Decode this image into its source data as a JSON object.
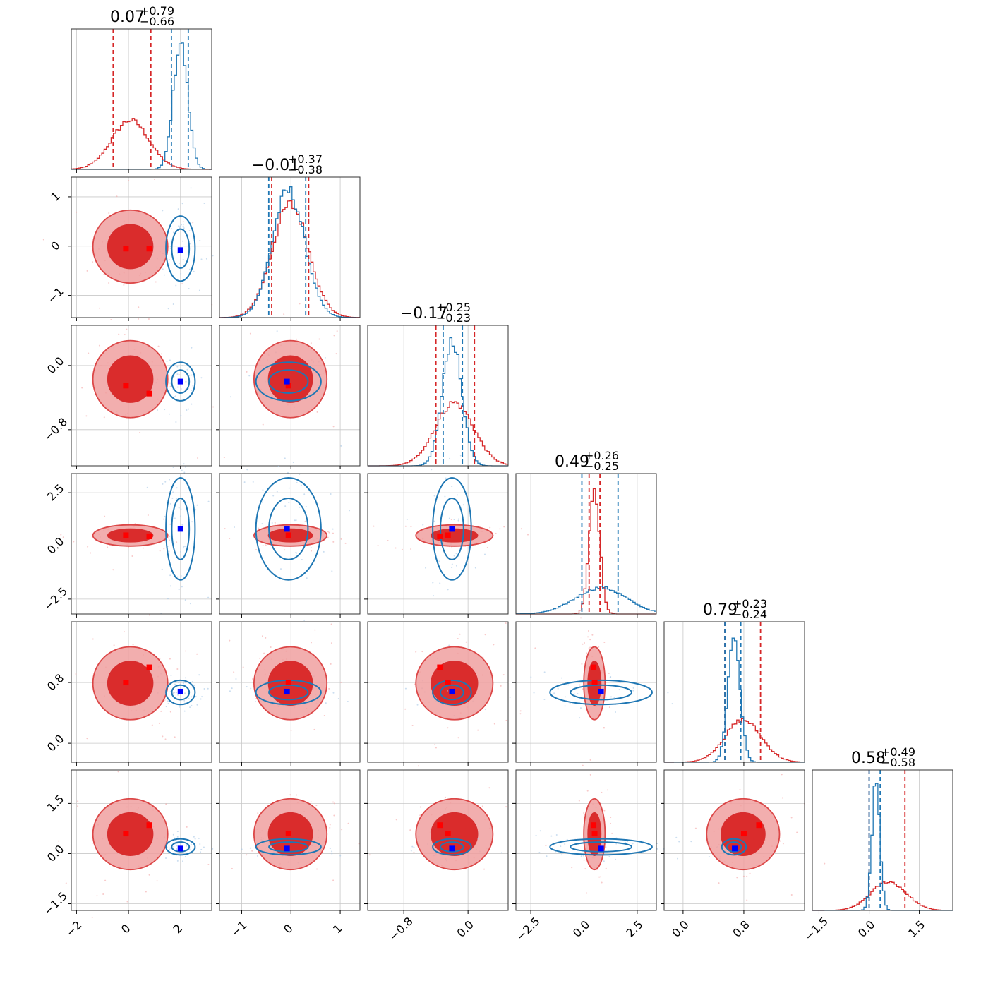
{
  "chart_data": {
    "type": "corner",
    "colors": {
      "run_a": "#d62728",
      "run_b": "#1f77b4",
      "marker_a": "#ff0000",
      "marker_b": "#0000ff"
    },
    "grid": true,
    "parameters": [
      {
        "range": [
          -2.2,
          3.2
        ],
        "ticks": [
          -2,
          0,
          2
        ],
        "tick_labels": [
          "−2",
          "0",
          "2"
        ],
        "title": {
          "main": "0.07",
          "plus": "+0.79",
          "minus": "−0.66"
        },
        "a": {
          "mean": 0.07,
          "sd": 0.72,
          "lo": -0.59,
          "hi": 0.86
        },
        "b": {
          "mean": 2.0,
          "sd": 0.28,
          "lo": 1.65,
          "hi": 2.3
        },
        "markers_a": [
          -0.1,
          0.8
        ],
        "marker_b": 2.0
      },
      {
        "range": [
          -1.45,
          1.4
        ],
        "ticks": [
          -1,
          0,
          1
        ],
        "tick_labels": [
          "−1",
          "0",
          "1"
        ],
        "title": {
          "main": "−0.01",
          "plus": "+0.37",
          "minus": "−0.38"
        },
        "a": {
          "mean": -0.01,
          "sd": 0.37,
          "lo": -0.39,
          "hi": 0.36
        },
        "b": {
          "mean": -0.05,
          "sd": 0.33,
          "lo": -0.45,
          "hi": 0.3
        },
        "markers_a": [
          -0.05
        ],
        "marker_b": -0.08
      },
      {
        "range": [
          -1.25,
          0.5
        ],
        "ticks": [
          -0.8,
          0.0
        ],
        "tick_labels": [
          "−0.8",
          "0.0"
        ],
        "title": {
          "main": "−0.17",
          "plus": "+0.25",
          "minus": "−0.23"
        },
        "a": {
          "mean": -0.17,
          "sd": 0.24,
          "lo": -0.4,
          "hi": 0.08
        },
        "b": {
          "mean": -0.2,
          "sd": 0.12,
          "lo": -0.31,
          "hi": -0.07
        },
        "markers_a": [
          -0.25,
          -0.35
        ],
        "marker_b": -0.2
      },
      {
        "range": [
          -3.2,
          3.4
        ],
        "ticks": [
          -2.5,
          0.0,
          2.5
        ],
        "tick_labels": [
          "−2.5",
          "0.0",
          "2.5"
        ],
        "title": {
          "main": "0.49",
          "plus": "+0.26",
          "minus": "−0.25"
        },
        "a": {
          "mean": 0.49,
          "sd": 0.25,
          "lo": 0.24,
          "hi": 0.75
        },
        "b": {
          "mean": 0.8,
          "sd": 1.2,
          "lo": -0.1,
          "hi": 1.6
        },
        "markers_a": [
          0.5,
          0.45
        ],
        "marker_b": 0.8
      },
      {
        "range": [
          -0.25,
          1.6
        ],
        "ticks": [
          0.0,
          0.8
        ],
        "tick_labels": [
          "0.0",
          "0.8"
        ],
        "title": {
          "main": "0.79",
          "plus": "+0.23",
          "minus": "−0.24"
        },
        "a": {
          "mean": 0.79,
          "sd": 0.24,
          "lo": 0.55,
          "hi": 1.02
        },
        "b": {
          "mean": 0.67,
          "sd": 0.08,
          "lo": 0.55,
          "hi": 0.76
        },
        "markers_a": [
          0.8,
          1.0
        ],
        "marker_b": 0.68
      },
      {
        "range": [
          -1.7,
          2.5
        ],
        "ticks": [
          -1.5,
          0.0,
          1.5
        ],
        "tick_labels": [
          "−1.5",
          "0.0",
          "1.5"
        ],
        "title": {
          "main": "0.58",
          "plus": "+0.49",
          "minus": "−0.58"
        },
        "a": {
          "mean": 0.58,
          "sd": 0.53,
          "lo": 0.0,
          "hi": 1.07
        },
        "b": {
          "mean": 0.2,
          "sd": 0.12,
          "lo": 0.0,
          "hi": 0.33
        },
        "markers_a": [
          0.6,
          0.85
        ],
        "marker_b": 0.15
      }
    ]
  }
}
